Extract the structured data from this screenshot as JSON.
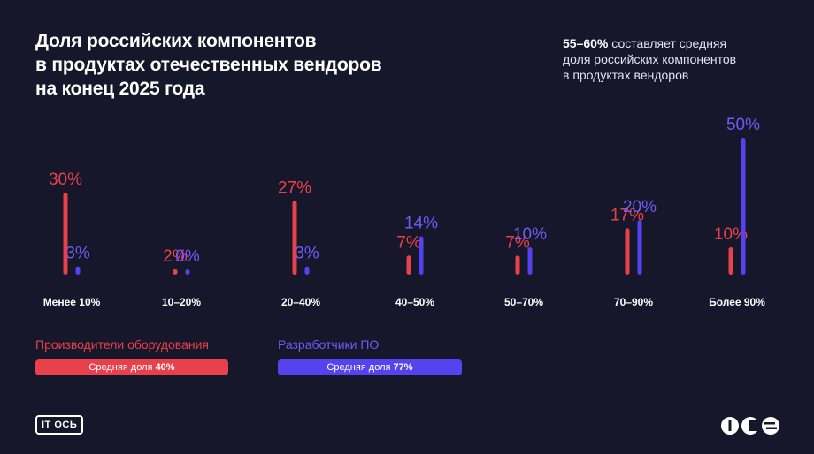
{
  "title_lines": [
    "Доля российских компонентов",
    "в продуктах отечественных вендоров",
    "на конец 2025 года"
  ],
  "note": {
    "highlight": "55–60%",
    "line1_rest": " составляет средняя",
    "line2": "доля российских компонентов",
    "line3": "в продуктах вендоров"
  },
  "chart_data": {
    "type": "bar",
    "title": "Доля российских компонентов в продуктах отечественных вендоров на конец 2025 года",
    "categories": [
      "Менее 10%",
      "10–20%",
      "20–40%",
      "40–50%",
      "50–70%",
      "70–90%",
      "Более 90%"
    ],
    "series": [
      {
        "name": "Производители оборудования",
        "values": [
          30,
          2,
          27,
          7,
          7,
          17,
          10
        ],
        "color": "#e8414b"
      },
      {
        "name": "Разработчики ПО",
        "values": [
          3,
          0,
          3,
          14,
          10,
          20,
          50
        ],
        "color": "#5443ee"
      }
    ],
    "value_suffix": "%",
    "label_colors": [
      "#e8414b",
      "#6d5cf6"
    ],
    "grid": false,
    "legend": "bottom-left"
  },
  "legend": {
    "hardware": {
      "name": "Производители оборудования",
      "avg_label": "Средняя доля ",
      "avg_value": "40%"
    },
    "software": {
      "name": "Разработчики ПО",
      "avg_label": "Средняя доля ",
      "avg_value": "77%"
    }
  },
  "logos": {
    "left": "IT ОСЬ",
    "right": "ICS"
  }
}
